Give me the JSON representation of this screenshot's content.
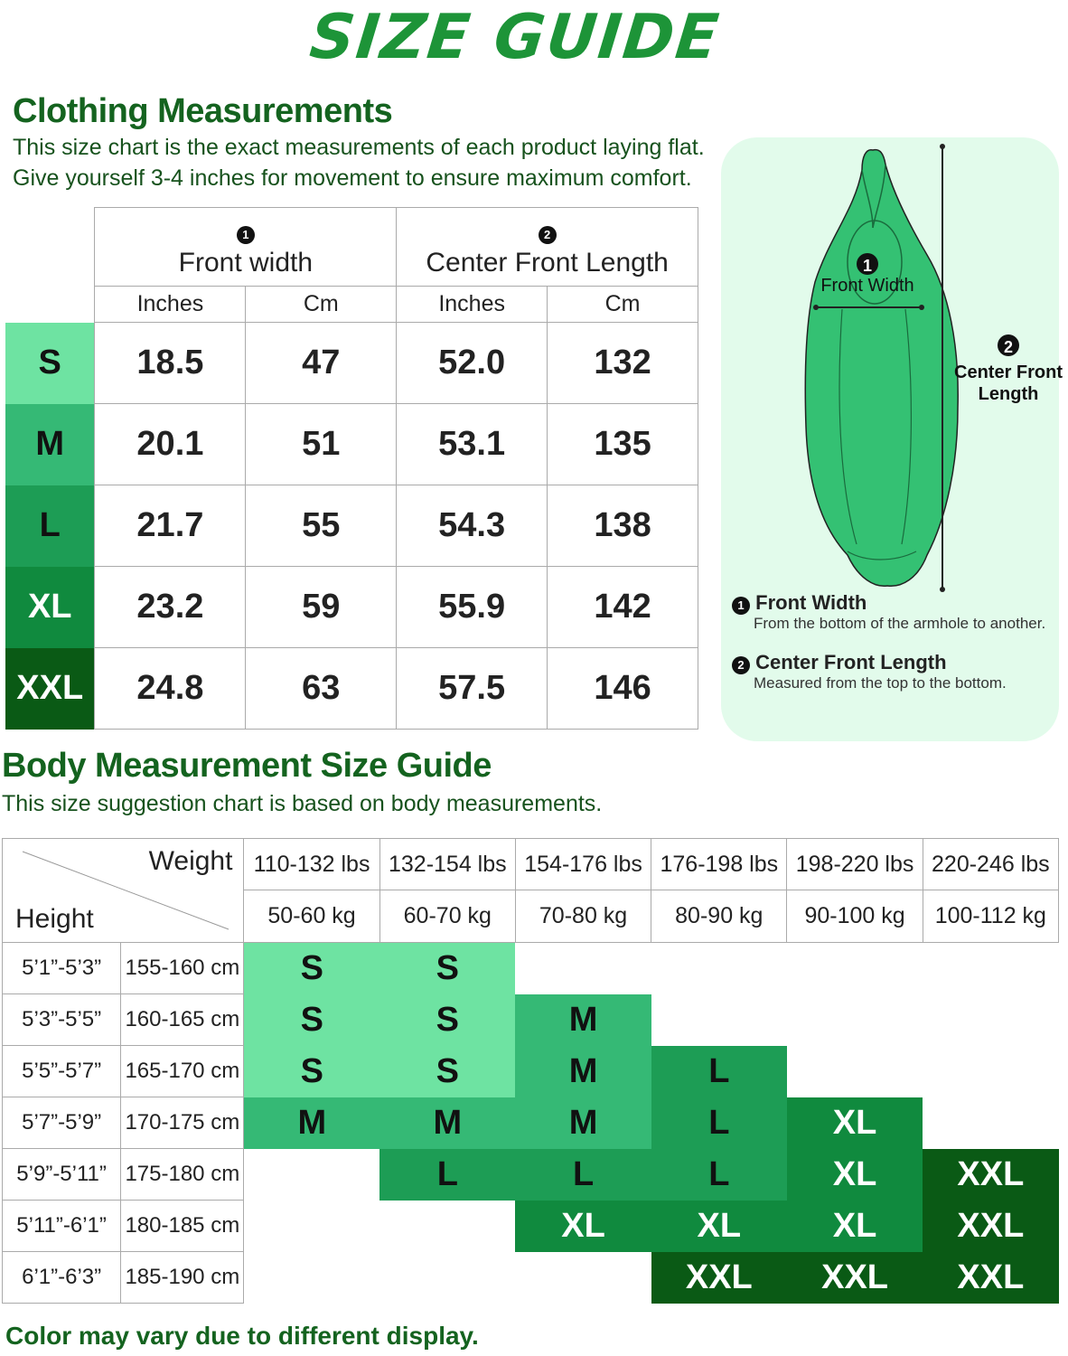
{
  "title": "SIZE GUIDE",
  "clothing": {
    "heading": "Clothing Measurements",
    "desc_line1": "This size chart is the exact measurements of each product laying flat.",
    "desc_line2": "Give yourself 3-4 inches for movement to ensure maximum comfort.",
    "groups": [
      {
        "num": "1",
        "label": "Front width"
      },
      {
        "num": "2",
        "label": "Center Front Length"
      }
    ],
    "units": [
      "Inches",
      "Cm",
      "Inches",
      "Cm"
    ],
    "rows": [
      {
        "size": "S",
        "values": [
          "18.5",
          "47",
          "52.0",
          "132"
        ],
        "color": "#6ee3a2",
        "text_color": "#111111"
      },
      {
        "size": "M",
        "values": [
          "20.1",
          "51",
          "53.1",
          "135"
        ],
        "color": "#35b975",
        "text_color": "#111111"
      },
      {
        "size": "L",
        "values": [
          "21.7",
          "55",
          "54.3",
          "138"
        ],
        "color": "#1d9d55",
        "text_color": "#111111"
      },
      {
        "size": "XL",
        "values": [
          "23.2",
          "59",
          "55.9",
          "142"
        ],
        "color": "#108a3e",
        "text_color": "#ffffff"
      },
      {
        "size": "XXL",
        "values": [
          "24.8",
          "63",
          "57.5",
          "146"
        ],
        "color": "#0a5a15",
        "text_color": "#ffffff"
      }
    ]
  },
  "diagram": {
    "num1": "1",
    "label1": "Front Width",
    "num2": "2",
    "label2a": "Center Front",
    "label2b": "Length",
    "legend": [
      {
        "num": "1",
        "title": "Front Width",
        "desc": "From the bottom of the armhole to another."
      },
      {
        "num": "2",
        "title": "Center Front Length",
        "desc": "Measured from the top to the bottom."
      }
    ],
    "garment_color": "#34c173"
  },
  "body": {
    "heading": "Body Measurement Size Guide",
    "desc": "This size suggestion chart is based on body measurements.",
    "weight_label": "Weight",
    "height_label": "Height",
    "weights_lbs": [
      "110-132 lbs",
      "132-154 lbs",
      "154-176 lbs",
      "176-198 lbs",
      "198-220 lbs",
      "220-246 lbs"
    ],
    "weights_kg": [
      "50-60 kg",
      "60-70 kg",
      "70-80 kg",
      "80-90 kg",
      "90-100 kg",
      "100-112 kg"
    ],
    "rows": [
      {
        "ft": "5’1”-5’3”",
        "cm": "155-160 cm",
        "sizes": [
          "S",
          "S",
          "",
          "",
          "",
          ""
        ]
      },
      {
        "ft": "5’3”-5’5”",
        "cm": "160-165 cm",
        "sizes": [
          "S",
          "S",
          "M",
          "",
          "",
          ""
        ]
      },
      {
        "ft": "5’5”-5’7”",
        "cm": "165-170 cm",
        "sizes": [
          "S",
          "S",
          "M",
          "L",
          "",
          ""
        ]
      },
      {
        "ft": "5’7”-5’9”",
        "cm": "170-175 cm",
        "sizes": [
          "M",
          "M",
          "M",
          "L",
          "XL",
          ""
        ]
      },
      {
        "ft": "5’9”-5’11”",
        "cm": "175-180 cm",
        "sizes": [
          "",
          "L",
          "L",
          "L",
          "XL",
          "XXL"
        ]
      },
      {
        "ft": "5’11”-6’1”",
        "cm": "180-185 cm",
        "sizes": [
          "",
          "",
          "XL",
          "XL",
          "XL",
          "XXL"
        ]
      },
      {
        "ft": "6’1”-6’3”",
        "cm": "185-190 cm",
        "sizes": [
          "",
          "",
          "",
          "XXL",
          "XXL",
          "XXL"
        ]
      }
    ],
    "size_colors": {
      "S": {
        "bg": "#6ee3a2",
        "fg": "#111111"
      },
      "M": {
        "bg": "#35b975",
        "fg": "#111111"
      },
      "L": {
        "bg": "#1d9d55",
        "fg": "#111111"
      },
      "XL": {
        "bg": "#108a3e",
        "fg": "#ffffff"
      },
      "XXL": {
        "bg": "#0a5a15",
        "fg": "#ffffff"
      }
    }
  },
  "footer": "Color may vary due to different display."
}
